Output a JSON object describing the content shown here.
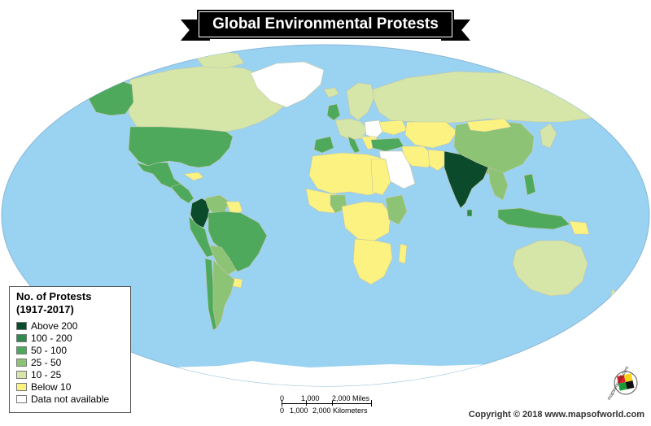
{
  "title": "Global Environmental Protests",
  "legend": {
    "title_line1": "No. of Protests",
    "title_line2": "(1917-2017)",
    "items": [
      {
        "label": "Above 200",
        "color": "#0b4a2a"
      },
      {
        "label": "100 - 200",
        "color": "#2e8b4f"
      },
      {
        "label": "50 - 100",
        "color": "#4ea95c"
      },
      {
        "label": "25 - 50",
        "color": "#8cc374"
      },
      {
        "label": "10 - 25",
        "color": "#d5e6a8"
      },
      {
        "label": "Below 10",
        "color": "#fbf282"
      },
      {
        "label": "Data not available",
        "color": "#ffffff"
      }
    ]
  },
  "scale": {
    "miles": [
      "0",
      "1,000",
      "2,000 Miles"
    ],
    "kilometers": [
      "0",
      "1,000",
      "2,000 Kilometers"
    ]
  },
  "copyright": "Copyright © 2018 www.mapsofworld.com",
  "logo_text": "mapsofworld.com",
  "colors": {
    "ocean": "#9ad2f1",
    "border": "#c5c5a5"
  }
}
